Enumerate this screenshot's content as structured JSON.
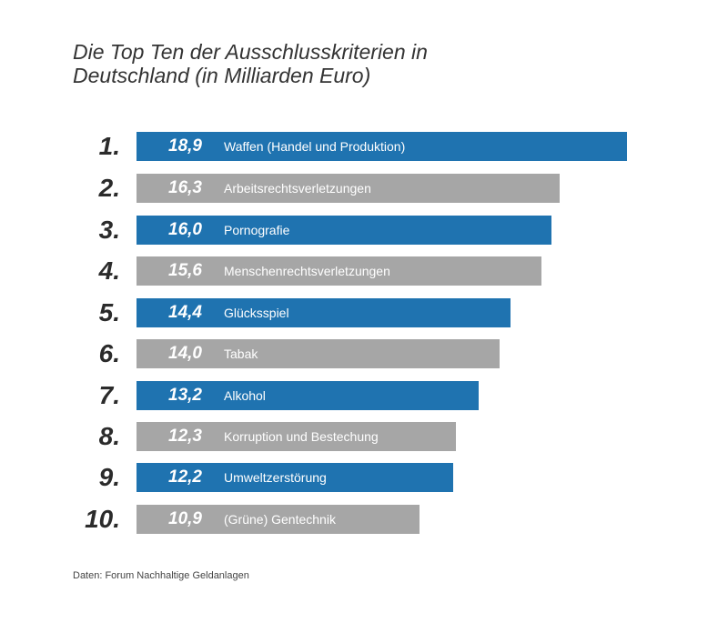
{
  "chart_data": {
    "type": "bar",
    "orientation": "horizontal",
    "title": "Die Top Ten der Ausschlusskriterien in Deutschland (in Milliarden Euro)",
    "title_lines": [
      "Die Top Ten der Ausschlusskriterien in",
      "Deutschland (in Milliarden Euro)"
    ],
    "ranks": [
      "1.",
      "2.",
      "3.",
      "4.",
      "5.",
      "6.",
      "7.",
      "8.",
      "9.",
      "10."
    ],
    "categories": [
      "Waffen (Handel und Produktion)",
      "Arbeitsrechtsverletzungen",
      "Pornografie",
      "Menschenrechtsverletzungen",
      "Glücksspiel",
      "Tabak",
      "Alkohol",
      "Korruption und Bestechung",
      "Umweltzerstörung",
      "(Grüne) Gentechnik"
    ],
    "values": [
      18.9,
      16.3,
      16.0,
      15.6,
      14.4,
      14.0,
      13.2,
      12.3,
      12.2,
      10.9
    ],
    "value_labels": [
      "18,9",
      "16,3",
      "16,0",
      "15,6",
      "14,4",
      "14,0",
      "13,2",
      "12,3",
      "12,2",
      "10,9"
    ],
    "colors": [
      "#1f73b0",
      "#a6a6a6"
    ],
    "xlim": [
      0,
      18.9
    ],
    "source": "Daten: Forum Nachhaltige Geldanlagen"
  }
}
